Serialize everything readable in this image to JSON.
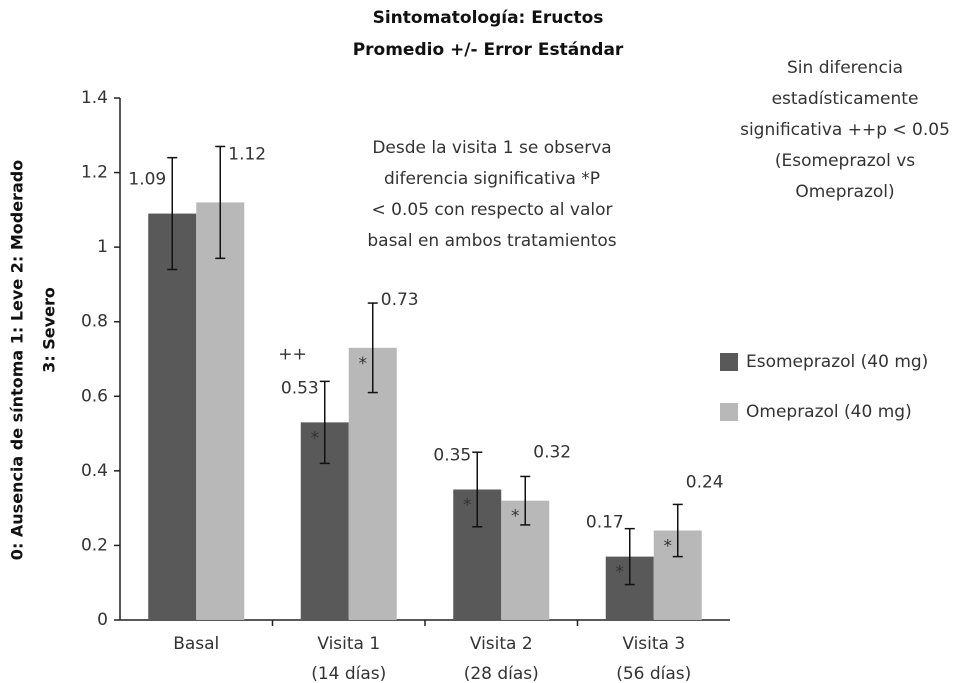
{
  "chart_data": {
    "type": "bar",
    "title": [
      "Sintomatología: Eructos",
      "Promedio +/- Error Estándar"
    ],
    "ylabel": [
      "0: Ausencia de síntoma   1: Leve   2: Moderado",
      "3: Severo"
    ],
    "categories": [
      "Basal",
      "Visita 1\n(14 días)",
      "Visita 2\n(28 días)",
      "Visita 3\n(56 días)"
    ],
    "series": [
      {
        "name": "Esomeprazol (40 mg)",
        "color": "#595959",
        "values": [
          1.09,
          0.53,
          0.35,
          0.17
        ],
        "errors": [
          0.15,
          0.11,
          0.1,
          0.075
        ]
      },
      {
        "name": "Omeprazol (40 mg)",
        "color": "#b8b8b8",
        "values": [
          1.12,
          0.73,
          0.32,
          0.24
        ],
        "errors": [
          0.15,
          0.12,
          0.065,
          0.07
        ]
      }
    ],
    "ylim": [
      0,
      1.4
    ],
    "yticks": [
      0,
      0.2,
      0.4,
      0.6,
      0.8,
      1,
      1.2,
      1.4
    ],
    "markers": [
      {
        "text": "++",
        "series": 0,
        "category": 1
      },
      {
        "text": "*",
        "series": 0,
        "category": 1
      },
      {
        "text": "*",
        "series": 1,
        "category": 1
      },
      {
        "text": "*",
        "series": 0,
        "category": 2
      },
      {
        "text": "*",
        "series": 1,
        "category": 2
      },
      {
        "text": "*",
        "series": 0,
        "category": 3
      },
      {
        "text": "*",
        "series": 1,
        "category": 3
      }
    ],
    "annotations": [
      [
        "Desde la visita 1 se observa",
        "diferencia significativa *P",
        "< 0.05 con respecto al valor",
        "basal en ambos tratamientos"
      ],
      [
        "Sin diferencia",
        "estadísticamente",
        "significativa ++p < 0.05",
        "(Esomeprazol vs",
        "Omeprazol)"
      ]
    ],
    "legend": "right"
  }
}
